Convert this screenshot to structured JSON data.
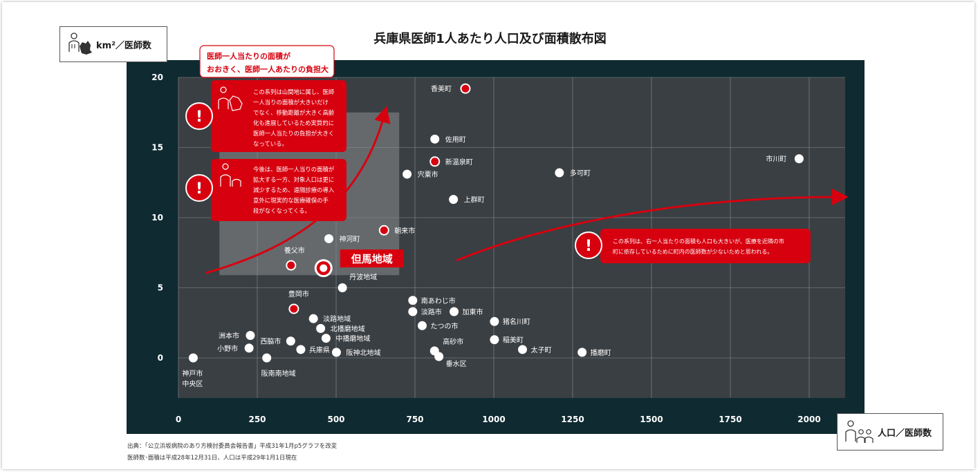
{
  "title": "兵庫県医師1人あたり人口及び面積散布図",
  "y_axis_title": "km²／医師数",
  "x_axis_title": "人口／医師数",
  "source_line1": "出典：「公立浜坂病院のあり方検討委員会報告書」平成31年1月p5グラフを改変",
  "source_line2": "医師数･面積は平成28年12月31日、人口は平成29年1月1日現在",
  "callout_top": {
    "line1": "医師一人当たりの面積が",
    "line2": "おおきく、医師一人あたりの負担大"
  },
  "note1": [
    "この系列は山間地に属し、医師",
    "一人当りの面積が大きいだけ",
    "でなく、移動距離が大きく高齢",
    "化も進展しているため実質的に",
    "医師一人当たりの負担が大きく",
    "なっている。"
  ],
  "note2": [
    "今後は、医師一人当りの面積が",
    "拡大する一方、対象人口は更に",
    "減少するため、遠隔診療の導入",
    "意外に現実的な医療確保の手",
    "段がなくなってくる。"
  ],
  "note3": [
    "この系列は、右一人当たりの面積も人口も大きいが、医療を近隣の市",
    "町に依存しているために町内の医師数が少ないためと思われる。"
  ],
  "exclaim": "!",
  "highlight_label": "但馬地域",
  "colors": {
    "background": "#0f2a31",
    "plot": "#3a3f43",
    "highlight_box": "#6a6e71",
    "accent": "#d7000f",
    "point": "#ffffff"
  },
  "chart_data": {
    "type": "scatter",
    "title": "兵庫県医師1人あたり人口及び面積散布図",
    "xlabel": "人口／医師数",
    "ylabel": "km²／医師数",
    "xlim": [
      0,
      2100
    ],
    "ylim": [
      -2.8,
      20
    ],
    "xticks": [
      0,
      250,
      500,
      750,
      1000,
      1250,
      1500,
      1750,
      2000
    ],
    "yticks": [
      0,
      5,
      10,
      15,
      20
    ],
    "grid": true,
    "points": [
      {
        "label": "香美町",
        "x": 910,
        "y": 19.2,
        "red": true
      },
      {
        "label": "佐用町",
        "x": 813,
        "y": 15.6,
        "red": false
      },
      {
        "label": "新温泉町",
        "x": 813,
        "y": 14.0,
        "red": true
      },
      {
        "label": "市川町",
        "x": 1968,
        "y": 14.2,
        "red": false
      },
      {
        "label": "多可町",
        "x": 1208,
        "y": 13.2,
        "red": false
      },
      {
        "label": "宍粟市",
        "x": 725,
        "y": 13.1,
        "red": false
      },
      {
        "label": "上群町",
        "x": 872,
        "y": 11.3,
        "red": false
      },
      {
        "label": "朝来市",
        "x": 652,
        "y": 9.1,
        "red": true
      },
      {
        "label": "神河町",
        "x": 477,
        "y": 8.5,
        "red": false
      },
      {
        "label": "養父市",
        "x": 357,
        "y": 6.6,
        "red": true
      },
      {
        "label": "但馬地域",
        "x": 460,
        "y": 6.4,
        "red": true,
        "big": true
      },
      {
        "label": "丹波地域",
        "x": 520,
        "y": 5.0,
        "red": false
      },
      {
        "label": "豊岡市",
        "x": 366,
        "y": 3.5,
        "red": true
      },
      {
        "label": "南あわじ市",
        "x": 743,
        "y": 4.1,
        "red": false
      },
      {
        "label": "淡路市",
        "x": 743,
        "y": 3.3,
        "red": false
      },
      {
        "label": "加東市",
        "x": 874,
        "y": 3.3,
        "red": false
      },
      {
        "label": "猪名川町",
        "x": 1002,
        "y": 2.6,
        "red": false
      },
      {
        "label": "たつの市",
        "x": 773,
        "y": 2.3,
        "red": false
      },
      {
        "label": "淡路地域",
        "x": 428,
        "y": 2.8,
        "red": false
      },
      {
        "label": "北播磨地域",
        "x": 451,
        "y": 2.1,
        "red": false
      },
      {
        "label": "中播磨地域",
        "x": 468,
        "y": 1.4,
        "red": false
      },
      {
        "label": "洲本市",
        "x": 228,
        "y": 1.6,
        "red": false
      },
      {
        "label": "小野市",
        "x": 224,
        "y": 0.7,
        "red": false
      },
      {
        "label": "西脇市",
        "x": 356,
        "y": 1.2,
        "red": false
      },
      {
        "label": "兵庫県",
        "x": 388,
        "y": 0.6,
        "red": false
      },
      {
        "label": "阪神北地域",
        "x": 501,
        "y": 0.4,
        "red": false
      },
      {
        "label": "稲美町",
        "x": 1002,
        "y": 1.3,
        "red": false
      },
      {
        "label": "太子町",
        "x": 1091,
        "y": 0.6,
        "red": false
      },
      {
        "label": "播磨町",
        "x": 1280,
        "y": 0.4,
        "red": false
      },
      {
        "label": "高砂市",
        "x": 812,
        "y": 0.5,
        "red": false
      },
      {
        "label": "垂水区",
        "x": 826,
        "y": 0.1,
        "red": false
      },
      {
        "label": "神戸市中央区",
        "x": 47,
        "y": 0.0,
        "red": false
      },
      {
        "label": "阪南南地域",
        "x": 280,
        "y": 0.0,
        "red": false
      }
    ]
  }
}
